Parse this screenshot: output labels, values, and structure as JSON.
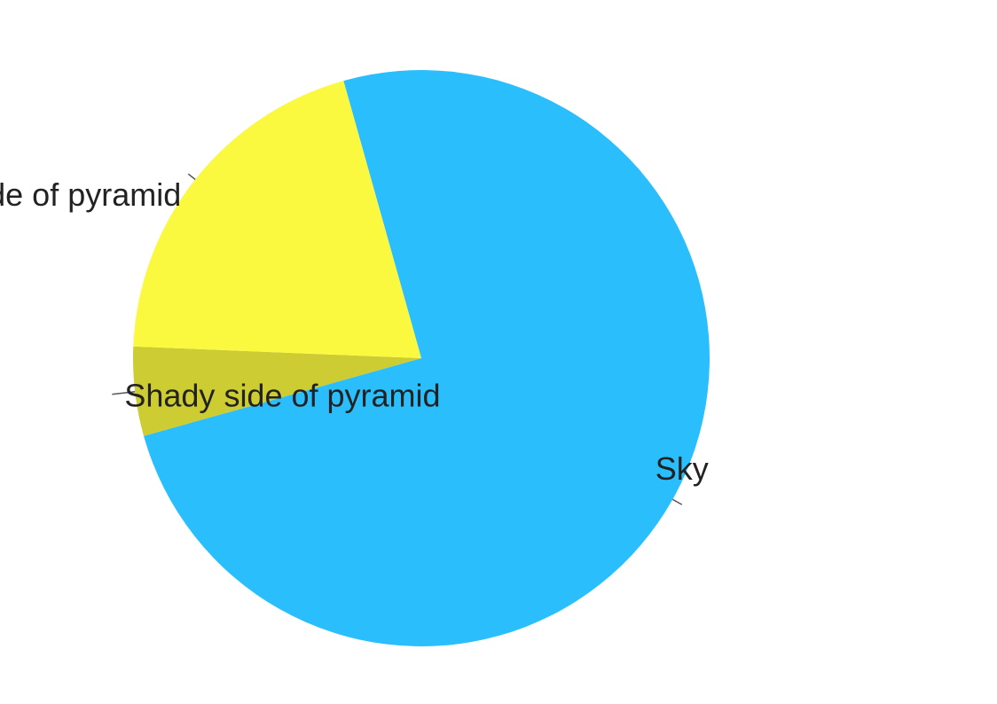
{
  "chart_data": {
    "type": "pie",
    "title": "",
    "slices": [
      {
        "label": "Sky",
        "value": 75,
        "color": "#2bbefc"
      },
      {
        "label": "Shady side of pyramid",
        "value": 5,
        "color": "#cdcc32"
      },
      {
        "label": "Sunny side of pyramid",
        "value": 20,
        "color": "#fbf93f"
      }
    ],
    "legend": "none",
    "labels": "outside-with-leader-lines"
  }
}
